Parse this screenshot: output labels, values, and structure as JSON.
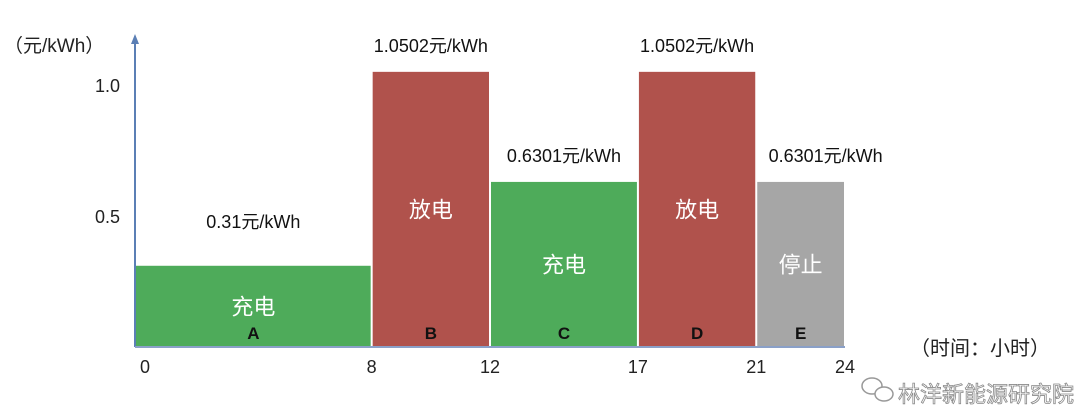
{
  "chart_data": {
    "type": "bar",
    "title": "",
    "ylabel": "（元/kWh）",
    "xlabel": "（时间：小时）",
    "yticks": [
      {
        "value": 0.5,
        "label": "0.5"
      },
      {
        "value": 1.0,
        "label": "1.0"
      }
    ],
    "xticks": [
      0,
      8,
      12,
      17,
      21,
      24
    ],
    "xlim": [
      0,
      24
    ],
    "ylim": [
      0,
      1.1
    ],
    "grid": false,
    "segments": [
      {
        "letter": "A",
        "start": 0,
        "end": 8,
        "value": 0.31,
        "price_label": "0.31元/kWh",
        "mode": "充电",
        "color": "#4eab5a"
      },
      {
        "letter": "B",
        "start": 8,
        "end": 12,
        "value": 1.0502,
        "price_label": "1.0502元/kWh",
        "mode": "放电",
        "color": "#b0524c"
      },
      {
        "letter": "C",
        "start": 12,
        "end": 17,
        "value": 0.6301,
        "price_label": "0.6301元/kWh",
        "mode": "充电",
        "color": "#4eab5a"
      },
      {
        "letter": "D",
        "start": 17,
        "end": 21,
        "value": 1.0502,
        "price_label": "1.0502元/kWh",
        "mode": "放电",
        "color": "#b0524c"
      },
      {
        "letter": "E",
        "start": 21,
        "end": 24,
        "value": 0.6301,
        "price_label": "0.6301元/kWh",
        "mode": "停止",
        "color": "#a6a6a6"
      }
    ],
    "axis_color": "#5b7fb5"
  },
  "watermark": {
    "text": "林洋新能源研究院",
    "icon": "wechat-icon"
  }
}
